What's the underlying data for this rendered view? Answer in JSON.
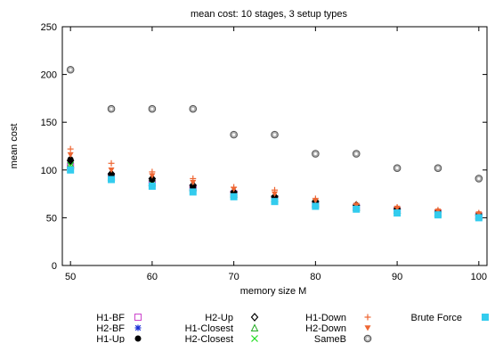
{
  "chart_data": {
    "type": "scatter",
    "title": "mean cost: 10 stages, 3 setup types",
    "xlabel": "memory size M",
    "ylabel": "mean cost",
    "xlim": [
      49,
      101
    ],
    "ylim": [
      0,
      250
    ],
    "x_ticks": [
      50,
      60,
      70,
      80,
      90,
      100
    ],
    "y_ticks": [
      0,
      50,
      100,
      150,
      200,
      250
    ],
    "grid": false,
    "legend_position": "bottom",
    "x": [
      50,
      55,
      60,
      65,
      70,
      75,
      80,
      85,
      90,
      95,
      100
    ],
    "series": [
      {
        "name": "H1-BF",
        "marker": "square-open",
        "color": "#cc44cc",
        "values": [
          104,
          93,
          86,
          81,
          75,
          70,
          64,
          61,
          58,
          55,
          52
        ]
      },
      {
        "name": "H2-BF",
        "marker": "star",
        "color": "#1a2fd6",
        "values": [
          109,
          94,
          88,
          82,
          75,
          70,
          65,
          61,
          58,
          55,
          52
        ]
      },
      {
        "name": "H1-Up",
        "marker": "circle-filled",
        "color": "#000000",
        "values": [
          111,
          95,
          90,
          82,
          76,
          71,
          66,
          62,
          58,
          56,
          53
        ]
      },
      {
        "name": "H2-Up",
        "marker": "diamond-open",
        "color": "#000000",
        "values": [
          110,
          96,
          91,
          84,
          77,
          72,
          67,
          63,
          59,
          56,
          53
        ]
      },
      {
        "name": "H1-Closest",
        "marker": "triangle-open",
        "color": "#22aa22",
        "values": [
          106,
          93,
          87,
          82,
          75,
          70,
          65,
          61,
          58,
          55,
          52
        ]
      },
      {
        "name": "H2-Closest",
        "marker": "cross",
        "color": "#22dd22",
        "values": [
          105,
          92,
          86,
          81,
          74,
          70,
          65,
          61,
          58,
          55,
          52
        ]
      },
      {
        "name": "H1-Down",
        "marker": "plus",
        "color": "#ee6633",
        "values": [
          122,
          107,
          98,
          91,
          82,
          79,
          70,
          64,
          61,
          58,
          55
        ]
      },
      {
        "name": "H2-Down",
        "marker": "triangle-down-filled",
        "color": "#ee6633",
        "values": [
          116,
          100,
          94,
          87,
          80,
          75,
          68,
          63,
          60,
          57,
          54
        ]
      },
      {
        "name": "SameB",
        "marker": "circle-ring",
        "color": "#808080",
        "values": [
          205,
          164,
          164,
          164,
          137,
          137,
          117,
          117,
          102,
          102,
          91
        ]
      },
      {
        "name": "Brute Force",
        "marker": "square-filled",
        "color": "#33ccee",
        "values": [
          100,
          90,
          83,
          77,
          72,
          67,
          62,
          59,
          55,
          53,
          50
        ]
      }
    ]
  }
}
